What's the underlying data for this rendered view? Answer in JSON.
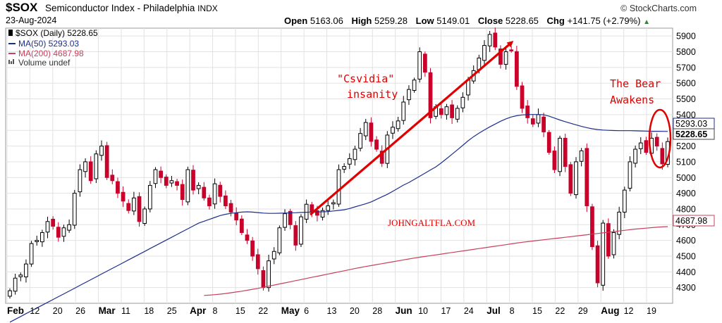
{
  "header": {
    "symbol": "$SOX",
    "name": "Semiconductor Index - Philadelphia",
    "exchange": "INDX",
    "date": "23-Aug-2024",
    "brand": "© StockCharts.com",
    "open_label": "Open",
    "open_value": "5163.06",
    "high_label": "High",
    "high_value": "5259.28",
    "low_label": "Low",
    "low_value": "5149.01",
    "close_label": "Close",
    "close_value": "5228.65",
    "chg_label": "Chg",
    "chg_value": "+141.75 (+2.79%)",
    "chg_arrow": "▲"
  },
  "legend": {
    "price": "$SOX (Daily) 5228.65",
    "ma50": "MA(50) 5293.03",
    "ma200": "MA(200) 4687.98",
    "volume": "Volume undef"
  },
  "annotations": {
    "csvidia_line1": "\"Csvidia\"",
    "csvidia_line2": "insanity",
    "bear_line1": "The Bear",
    "bear_line2": "Awakens",
    "watermark": "JOHNGALTFLA.COM"
  },
  "price_tags": {
    "ma50": "5293.03",
    "close": "5228.65",
    "ma200": "4687.98"
  },
  "colors": {
    "up_candle": "#000000",
    "down_candle": "#c8002a",
    "ma50": "#1c2e8c",
    "ma200": "#c8405a",
    "annotation": "#e00000",
    "grid": "#e2e2e2"
  },
  "chart_data": {
    "type": "candlestick",
    "title": "$SOX Semiconductor Index - Philadelphia",
    "ylim": [
      4200,
      5950
    ],
    "y_ticks": [
      4300,
      4400,
      4500,
      4600,
      4700,
      4800,
      4900,
      5000,
      5100,
      5200,
      5300,
      5400,
      5500,
      5600,
      5700,
      5800,
      5900
    ],
    "x_tick_labels": [
      {
        "label": "Feb",
        "bold": true
      },
      {
        "label": "12",
        "bold": false
      },
      {
        "label": "20",
        "bold": false
      },
      {
        "label": "26",
        "bold": false
      },
      {
        "label": "Mar",
        "bold": true
      },
      {
        "label": "11",
        "bold": false
      },
      {
        "label": "18",
        "bold": false
      },
      {
        "label": "25",
        "bold": false
      },
      {
        "label": "Apr",
        "bold": true
      },
      {
        "label": "8",
        "bold": false
      },
      {
        "label": "15",
        "bold": false
      },
      {
        "label": "22",
        "bold": false
      },
      {
        "label": "May",
        "bold": true
      },
      {
        "label": "6",
        "bold": false
      },
      {
        "label": "13",
        "bold": false
      },
      {
        "label": "20",
        "bold": false
      },
      {
        "label": "28",
        "bold": false
      },
      {
        "label": "Jun",
        "bold": true
      },
      {
        "label": "10",
        "bold": false
      },
      {
        "label": "17",
        "bold": false
      },
      {
        "label": "24",
        "bold": false
      },
      {
        "label": "Jul",
        "bold": true
      },
      {
        "label": "8",
        "bold": false
      },
      {
        "label": "15",
        "bold": false
      },
      {
        "label": "22",
        "bold": false
      },
      {
        "label": "29",
        "bold": false
      },
      {
        "label": "Aug",
        "bold": true
      },
      {
        "label": "12",
        "bold": false
      },
      {
        "label": "19",
        "bold": false
      }
    ],
    "closes": [
      4280,
      4360,
      4380,
      4450,
      4580,
      4600,
      4650,
      4720,
      4690,
      4620,
      4680,
      4700,
      4900,
      5050,
      5100,
      4980,
      5150,
      5200,
      5000,
      4980,
      4900,
      4850,
      4790,
      4870,
      4720,
      4800,
      4950,
      5050,
      5000,
      4950,
      4980,
      4950,
      4860,
      5050,
      4920,
      4950,
      4870,
      4820,
      4960,
      4880,
      4820,
      4780,
      4730,
      4650,
      4600,
      4500,
      4420,
      4300,
      4470,
      4530,
      4680,
      4770,
      4700,
      4570,
      4750,
      4830,
      4780,
      4760,
      4790,
      4820,
      4840,
      5050,
      5070,
      5120,
      5180,
      5280,
      5350,
      5230,
      5180,
      5090,
      5270,
      5320,
      5360,
      5480,
      5560,
      5620,
      5800,
      5670,
      5380,
      5450,
      5400,
      5450,
      5380,
      5440,
      5510,
      5620,
      5680,
      5760,
      5840,
      5910,
      5830,
      5720,
      5800,
      5810,
      5580,
      5440,
      5380,
      5340,
      5400,
      5290,
      5160,
      5050,
      5250,
      5070,
      4900,
      5100,
      5170,
      4820,
      4560,
      4330,
      4710,
      4500,
      4650,
      4780,
      4920,
      5100,
      5180,
      5220,
      5160,
      5250,
      5200,
      5087,
      5228.65
    ],
    "ma50": [
      4080,
      4098,
      4116,
      4134,
      4152,
      4170,
      4188,
      4206,
      4224,
      4242,
      4260,
      4278,
      4296,
      4314,
      4332,
      4350,
      4368,
      4386,
      4404,
      4422,
      4440,
      4458,
      4476,
      4494,
      4512,
      4530,
      4548,
      4566,
      4584,
      4602,
      4620,
      4638,
      4656,
      4674,
      4692,
      4710,
      4722,
      4734,
      4746,
      4758,
      4766,
      4772,
      4776,
      4780,
      4782,
      4780,
      4777,
      4774,
      4772,
      4772,
      4773,
      4774,
      4775,
      4776,
      4778,
      4779,
      4780,
      4781,
      4782,
      4783,
      4787,
      4791,
      4795,
      4803,
      4813,
      4823,
      4833,
      4845,
      4861,
      4877,
      4893,
      4912,
      4932,
      4952,
      4968,
      4988,
      5008,
      5028,
      5048,
      5068,
      5093,
      5120,
      5148,
      5176,
      5205,
      5234,
      5260,
      5282,
      5303,
      5322,
      5340,
      5358,
      5373,
      5385,
      5393,
      5398,
      5400,
      5401,
      5401,
      5399,
      5390,
      5378,
      5366,
      5355,
      5345,
      5335,
      5325,
      5317,
      5310,
      5305,
      5302,
      5300,
      5299,
      5298,
      5298,
      5298,
      5297,
      5296,
      5295,
      5294,
      5294,
      5293.5,
      5293.03
    ],
    "ma200": [
      4250,
      4252,
      4255,
      4258,
      4262,
      4267,
      4272,
      4277,
      4283,
      4289,
      4295,
      4302,
      4309,
      4316,
      4323,
      4330,
      4337,
      4344,
      4351,
      4358,
      4365,
      4372,
      4379,
      4386,
      4393,
      4400,
      4407,
      4414,
      4421,
      4428,
      4434,
      4440,
      4446,
      4452,
      4458,
      4464,
      4470,
      4476,
      4482,
      4488,
      4493,
      4498,
      4503,
      4508,
      4513,
      4518,
      4523,
      4528,
      4533,
      4538,
      4543,
      4548,
      4553,
      4558,
      4563,
      4568,
      4573,
      4578,
      4583,
      4588,
      4592,
      4596,
      4600,
      4604,
      4608,
      4612,
      4616,
      4620,
      4624,
      4628,
      4632,
      4636,
      4640,
      4644,
      4648,
      4652,
      4656,
      4660,
      4664,
      4668,
      4672,
      4675,
      4678,
      4681,
      4684,
      4686,
      4687.98
    ]
  }
}
